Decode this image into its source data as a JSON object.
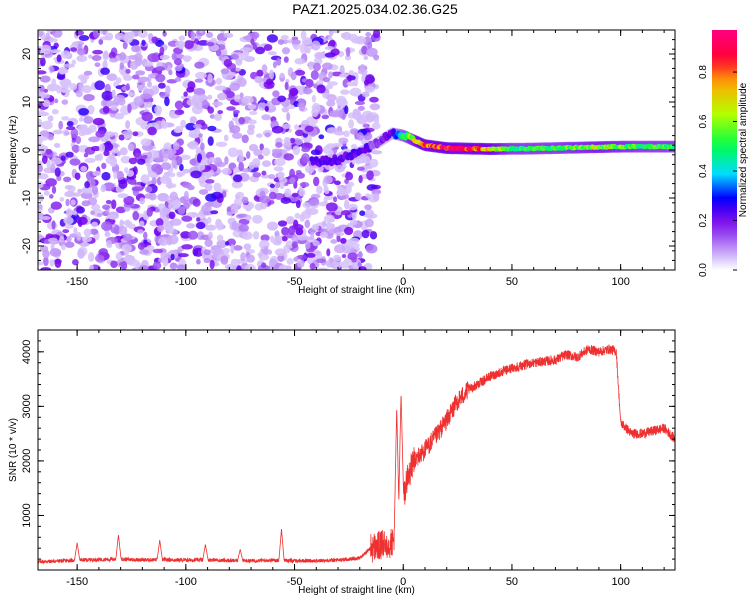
{
  "title": "PAZ1.2025.034.02.36.G25",
  "chart_data": [
    {
      "type": "heatmap",
      "xlabel": "Height of straight line (km)",
      "ylabel": "Frequency (Hz)",
      "xlim": [
        -168,
        125
      ],
      "ylim": [
        -25,
        25
      ],
      "xticks": [
        -150,
        -100,
        -50,
        0,
        50,
        100
      ],
      "yticks": [
        -20,
        -10,
        0,
        10,
        20
      ],
      "grid": false,
      "colorbar": {
        "label": "Normalized spectral amplitude",
        "range": [
          0,
          1
        ],
        "ticks": [
          0.0,
          0.2,
          0.4,
          0.6,
          0.8
        ],
        "tick_labels": [
          "0.0",
          "0.2",
          "0.4",
          "0.6",
          "0.8"
        ],
        "colors": [
          "#ffffff",
          "#b090f0",
          "#7a00ff",
          "#0000ff",
          "#00e8ff",
          "#00ff40",
          "#c8ff00",
          "#ffaa00",
          "#ff0040",
          "#ff0080"
        ]
      },
      "features": {
        "noise_region_x": [
          -168,
          -12
        ],
        "noise_level": [
          0.05,
          0.25
        ],
        "signal_track": [
          {
            "x": -40,
            "f": -2.5
          },
          {
            "x": -30,
            "f": -2.0
          },
          {
            "x": -20,
            "f": -0.5
          },
          {
            "x": -10,
            "f": 2.0
          },
          {
            "x": -5,
            "f": 3.5
          },
          {
            "x": 0,
            "f": 3.0
          },
          {
            "x": 5,
            "f": 2.0
          },
          {
            "x": 10,
            "f": 1.0
          },
          {
            "x": 20,
            "f": 0.4
          },
          {
            "x": 40,
            "f": 0.2
          },
          {
            "x": 60,
            "f": 0.3
          },
          {
            "x": 80,
            "f": 0.5
          },
          {
            "x": 100,
            "f": 0.7
          },
          {
            "x": 125,
            "f": 0.7
          }
        ],
        "signal_amplitude": [
          {
            "x": -15,
            "a": 0.15
          },
          {
            "x": -5,
            "a": 0.25
          },
          {
            "x": 0,
            "a": 0.5
          },
          {
            "x": 10,
            "a": 0.85
          },
          {
            "x": 20,
            "a": 0.95
          },
          {
            "x": 30,
            "a": 0.95
          },
          {
            "x": 50,
            "a": 0.55
          },
          {
            "x": 70,
            "a": 0.55
          },
          {
            "x": 90,
            "a": 0.65
          },
          {
            "x": 110,
            "a": 0.55
          },
          {
            "x": 125,
            "a": 0.55
          }
        ]
      }
    },
    {
      "type": "line",
      "xlabel": "Height of straight line (km)",
      "ylabel": "SNR (10 * v/v)",
      "xlim": [
        -168,
        125
      ],
      "ylim": [
        0,
        4400
      ],
      "xticks": [
        -150,
        -100,
        -50,
        0,
        50,
        100
      ],
      "yticks": [
        1000,
        2000,
        3000,
        4000
      ],
      "grid": false,
      "color": "#ee3030",
      "series": [
        {
          "x": [
            -168,
            -150,
            -140,
            -130,
            -120,
            -110,
            -100,
            -90,
            -80,
            -70,
            -60,
            -50,
            -40,
            -30,
            -20,
            -15,
            -10,
            -5,
            -3,
            -1,
            0,
            2,
            5,
            10,
            15,
            20,
            25,
            30,
            40,
            50,
            60,
            70,
            75,
            80,
            85,
            90,
            95,
            98,
            100,
            105,
            110,
            115,
            120,
            125
          ],
          "values": [
            150,
            180,
            190,
            200,
            185,
            190,
            180,
            190,
            170,
            170,
            180,
            170,
            170,
            180,
            220,
            400,
            450,
            500,
            600,
            1200,
            1300,
            1700,
            2000,
            2200,
            2450,
            2750,
            3100,
            3300,
            3550,
            3700,
            3800,
            3850,
            3950,
            3900,
            4050,
            4000,
            4050,
            4000,
            2700,
            2500,
            2500,
            2550,
            2600,
            2400
          ]
        }
      ],
      "spikes": [
        {
          "x": -150,
          "y": 500
        },
        {
          "x": -131,
          "y": 650
        },
        {
          "x": -112,
          "y": 550
        },
        {
          "x": -91,
          "y": 470
        },
        {
          "x": -75,
          "y": 380
        },
        {
          "x": -56,
          "y": 750
        },
        {
          "x": -3,
          "y": 3000
        },
        {
          "x": -1,
          "y": 3250
        }
      ]
    }
  ]
}
